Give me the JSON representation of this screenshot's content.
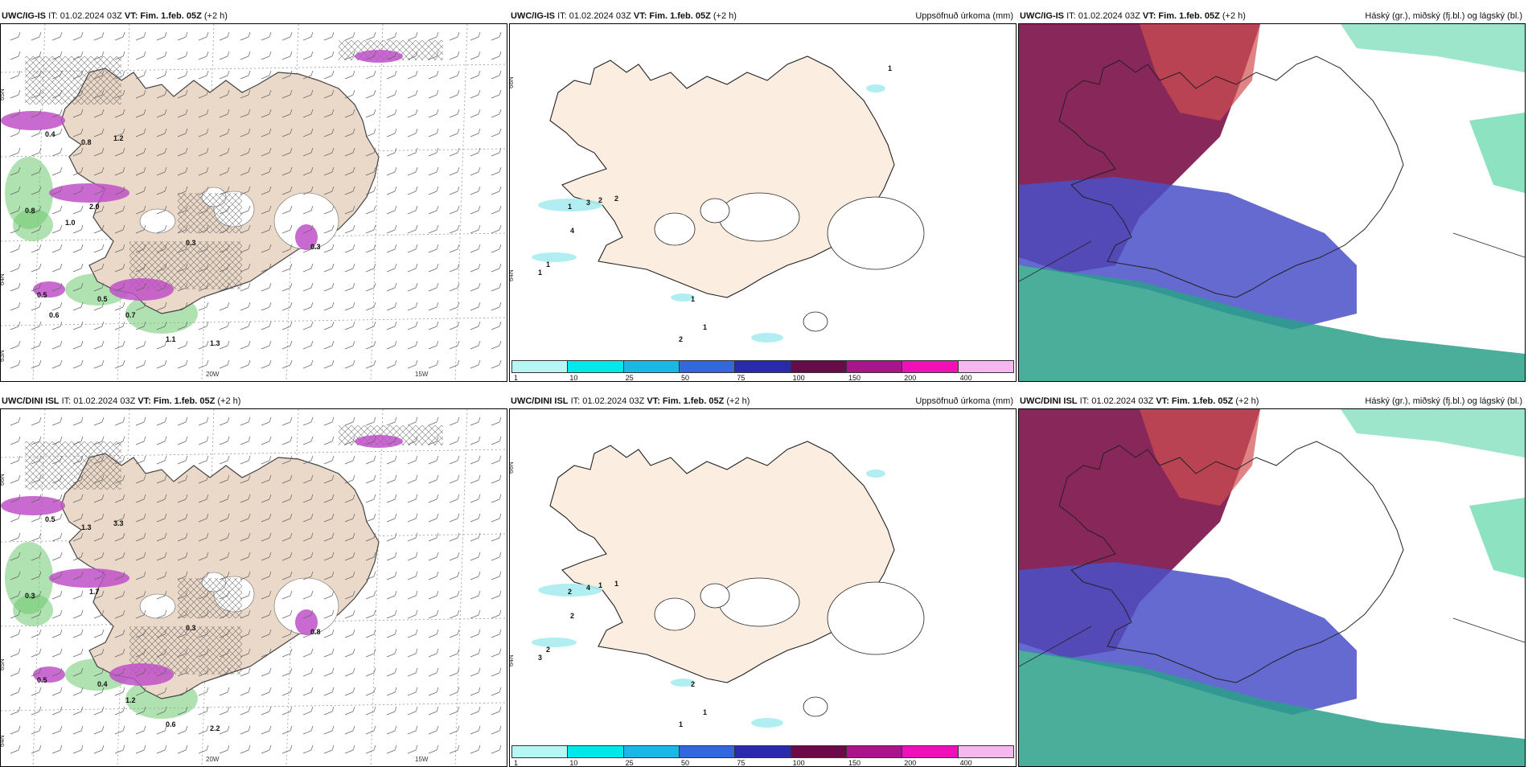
{
  "panels": [
    {
      "model": "UWC/IG-IS",
      "it_label": "IT: 01.02.2024 03Z",
      "vt_label": "VT: Fim. 1.feb. 05Z",
      "lead": "(+2 h)",
      "right_title": "",
      "type": "wind-precip",
      "axis_labels": [
        "65N",
        "64N",
        "63N",
        "20W",
        "15W"
      ],
      "contour_labels": [
        "0.4",
        "0.8",
        "1.2",
        "2.0",
        "0.8",
        "0.3",
        "0.3",
        "0.5",
        "0.7",
        "1.1",
        "1.3",
        "0.5",
        "0.6",
        "1.0"
      ]
    },
    {
      "model": "UWC/IG-IS",
      "it_label": "IT: 01.02.2024 03Z",
      "vt_label": "VT: Fim. 1.feb. 05Z",
      "lead": "(+2 h)",
      "right_title": "Uppsöfnuð úrkoma (mm)",
      "type": "accum",
      "axis_labels": [
        "66N",
        "64N"
      ],
      "contour_labels": [
        "1",
        "3",
        "2",
        "2",
        "4",
        "1",
        "1",
        "1",
        "1",
        "2",
        "1"
      ]
    },
    {
      "model": "UWC/IG-IS",
      "it_label": "IT: 01.02.2024 03Z",
      "vt_label": "VT: Fim. 1.feb. 05Z",
      "lead": "(+2 h)",
      "right_title": "Háský (gr.), miðský (fj.bl.) og lágský (bl.)",
      "type": "cloud"
    },
    {
      "model": "UWC/DINI ISL",
      "it_label": "IT: 01.02.2024 03Z",
      "vt_label": "VT: Fim. 1.feb. 05Z",
      "lead": "(+2 h)",
      "right_title": "",
      "type": "wind-precip",
      "axis_labels": [
        "66N",
        "65N",
        "64N",
        "20W",
        "15W"
      ],
      "contour_labels": [
        "0.5",
        "1.3",
        "3.3",
        "1.7",
        "0.3",
        "0.3",
        "0.8",
        "0.4",
        "1.2",
        "0.6",
        "2.2",
        "0.5"
      ]
    },
    {
      "model": "UWC/DINI ISL",
      "it_label": "IT: 01.02.2024 03Z",
      "vt_label": "VT: Fim. 1.feb. 05Z",
      "lead": "(+2 h)",
      "right_title": "Uppsöfnuð úrkoma (mm)",
      "type": "accum",
      "axis_labels": [
        "66N",
        "64N"
      ],
      "contour_labels": [
        "2",
        "4",
        "1",
        "1",
        "2",
        "2",
        "3",
        "2",
        "1",
        "1"
      ]
    },
    {
      "model": "UWC/DINI ISL",
      "it_label": "IT: 01.02.2024 03Z",
      "vt_label": "VT: Fim. 1.feb. 05Z",
      "lead": "(+2 h)",
      "right_title": "Háský (gr.), miðský (fj.bl.) og lágský (bl.)",
      "type": "cloud"
    }
  ],
  "colorbar": {
    "ticks": [
      "1",
      "10",
      "25",
      "50",
      "75",
      "100",
      "150",
      "200",
      "400"
    ],
    "colors": [
      "#b8f6f6",
      "#00e8e8",
      "#19b8e8",
      "#3466e0",
      "#2a2ab0",
      "#6a0a48",
      "#aa1488",
      "#ee10b8",
      "#f4b8ee"
    ]
  },
  "colors": {
    "land": "#ead8c8",
    "land_light": "#fbeee0",
    "precip_purple": "#c050c8",
    "precip_green": "#70c870",
    "cloud_high": "#7a1048",
    "cloud_mid": "#4a50c8",
    "cloud_low": "#2aa08a"
  }
}
